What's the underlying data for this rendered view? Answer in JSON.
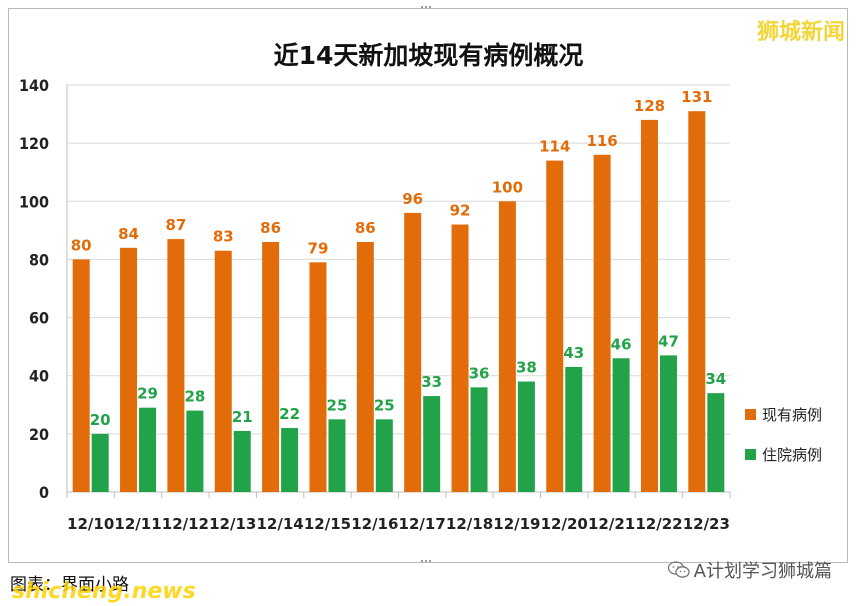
{
  "brand": "狮城新闻",
  "footer": {
    "caption": "图表：界面小路",
    "site": "shicheng.news",
    "account": "A计划学习狮城篇",
    "account_icon": "wechat-icon"
  },
  "colors": {
    "current": "#e36c0a",
    "hospital": "#22a34a"
  },
  "chart_data": {
    "type": "bar",
    "title": "近14天新加坡现有病例概况",
    "categories": [
      "12/10",
      "12/11",
      "12/12",
      "12/13",
      "12/14",
      "12/15",
      "12/16",
      "12/17",
      "12/18",
      "12/19",
      "12/20",
      "12/21",
      "12/22",
      "12/23"
    ],
    "series": [
      {
        "name": "现有病例",
        "values": [
          80,
          84,
          87,
          83,
          86,
          79,
          86,
          96,
          92,
          100,
          114,
          116,
          128,
          131
        ]
      },
      {
        "name": "住院病例",
        "values": [
          20,
          29,
          28,
          21,
          22,
          25,
          25,
          33,
          36,
          38,
          43,
          46,
          47,
          34
        ]
      }
    ],
    "ylim": [
      0,
      140
    ],
    "yticks": [
      0,
      20,
      40,
      60,
      80,
      100,
      120,
      140
    ],
    "grid": true,
    "legend": "right"
  }
}
